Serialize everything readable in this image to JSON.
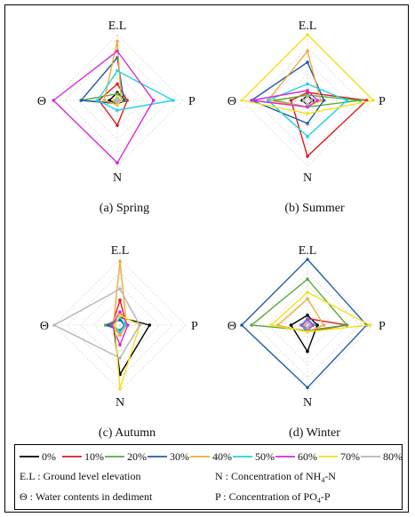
{
  "chart_data": [
    {
      "type": "radar",
      "caption": "(a) Spring",
      "axes": [
        "E.L",
        "P",
        "N",
        "Θ"
      ],
      "rlim": [
        0,
        1
      ],
      "series": [
        {
          "name": "0%",
          "color": "#000000",
          "values": [
            0.12,
            0.13,
            0.05,
            0.12
          ]
        },
        {
          "name": "10%",
          "color": "#e01a1a",
          "values": [
            0.25,
            0.15,
            0.38,
            0.28
          ]
        },
        {
          "name": "20%",
          "color": "#5aab3a",
          "values": [
            0.1,
            0.12,
            0.04,
            0.55
          ]
        },
        {
          "name": "30%",
          "color": "#1f5fa8",
          "values": [
            0.65,
            0.1,
            0.05,
            0.55
          ]
        },
        {
          "name": "40%",
          "color": "#f2a93b",
          "values": [
            0.9,
            0.06,
            0.07,
            0.2
          ]
        },
        {
          "name": "50%",
          "color": "#22d3e0",
          "values": [
            0.45,
            0.85,
            0.15,
            0.3
          ]
        },
        {
          "name": "60%",
          "color": "#d62ad6",
          "values": [
            0.75,
            0.55,
            0.95,
            0.97
          ]
        },
        {
          "name": "70%",
          "color": "#f3e21a",
          "values": [
            0.05,
            0.05,
            0.05,
            0.05
          ]
        },
        {
          "name": "80%",
          "color": "#b5b5b5",
          "values": [
            0.03,
            0.03,
            0.03,
            0.03
          ]
        }
      ]
    },
    {
      "type": "radar",
      "caption": "(b) Summer",
      "axes": [
        "E.L",
        "P",
        "N",
        "Θ"
      ],
      "rlim": [
        0,
        1
      ],
      "series": [
        {
          "name": "0%",
          "color": "#000000",
          "values": [
            0.08,
            0.08,
            0.07,
            0.08
          ]
        },
        {
          "name": "10%",
          "color": "#e01a1a",
          "values": [
            0.12,
            0.9,
            0.85,
            0.25
          ]
        },
        {
          "name": "20%",
          "color": "#5aab3a",
          "values": [
            0.08,
            0.8,
            0.1,
            0.5
          ]
        },
        {
          "name": "30%",
          "color": "#1f5fa8",
          "values": [
            0.58,
            0.25,
            0.35,
            0.85
          ]
        },
        {
          "name": "40%",
          "color": "#f2a93b",
          "values": [
            0.75,
            0.2,
            0.1,
            0.6
          ]
        },
        {
          "name": "50%",
          "color": "#22d3e0",
          "values": [
            0.25,
            0.6,
            0.55,
            0.6
          ]
        },
        {
          "name": "60%",
          "color": "#d62ad6",
          "values": [
            0.15,
            0.15,
            0.1,
            0.85
          ]
        },
        {
          "name": "70%",
          "color": "#f3e21a",
          "values": [
            1.0,
            1.0,
            0.2,
            1.0
          ]
        },
        {
          "name": "80%",
          "color": "#b5b5b5",
          "values": [
            0.06,
            0.06,
            0.06,
            0.06
          ]
        }
      ]
    },
    {
      "type": "radar",
      "caption": "(c) Autumn",
      "axes": [
        "E.L",
        "P",
        "N",
        "Θ"
      ],
      "rlim": [
        0,
        1
      ],
      "series": [
        {
          "name": "0%",
          "color": "#000000",
          "values": [
            0.12,
            0.45,
            0.75,
            0.1
          ]
        },
        {
          "name": "10%",
          "color": "#e01a1a",
          "values": [
            0.38,
            0.1,
            0.15,
            0.12
          ]
        },
        {
          "name": "20%",
          "color": "#5aab3a",
          "values": [
            0.1,
            0.1,
            0.08,
            0.22
          ]
        },
        {
          "name": "30%",
          "color": "#1f5fa8",
          "values": [
            0.08,
            0.07,
            0.08,
            0.18
          ]
        },
        {
          "name": "40%",
          "color": "#f2a93b",
          "values": [
            0.97,
            0.1,
            0.15,
            0.1
          ]
        },
        {
          "name": "50%",
          "color": "#22d3e0",
          "values": [
            0.12,
            0.08,
            0.1,
            0.1
          ]
        },
        {
          "name": "60%",
          "color": "#d62ad6",
          "values": [
            0.2,
            0.12,
            0.3,
            0.12
          ]
        },
        {
          "name": "70%",
          "color": "#f3e21a",
          "values": [
            0.15,
            0.3,
            0.97,
            0.08
          ]
        },
        {
          "name": "80%",
          "color": "#b5b5b5",
          "values": [
            0.55,
            0.3,
            0.5,
            1.0
          ]
        }
      ]
    },
    {
      "type": "radar",
      "caption": "(d) Winter",
      "axes": [
        "E.L",
        "P",
        "N",
        "Θ"
      ],
      "rlim": [
        0,
        1
      ],
      "series": [
        {
          "name": "0%",
          "color": "#000000",
          "values": [
            0.15,
            0.15,
            0.4,
            0.25
          ]
        },
        {
          "name": "10%",
          "color": "#e01a1a",
          "values": [
            0.1,
            0.6,
            0.1,
            0.1
          ]
        },
        {
          "name": "20%",
          "color": "#5aab3a",
          "values": [
            0.7,
            0.6,
            0.08,
            0.85
          ]
        },
        {
          "name": "30%",
          "color": "#1f5fa8",
          "values": [
            1.0,
            0.9,
            0.95,
            1.0
          ]
        },
        {
          "name": "40%",
          "color": "#f2a93b",
          "values": [
            0.4,
            0.25,
            0.1,
            0.45
          ]
        },
        {
          "name": "50%",
          "color": "#22d3e0",
          "values": [
            0.1,
            0.1,
            0.08,
            0.1
          ]
        },
        {
          "name": "60%",
          "color": "#d62ad6",
          "values": [
            0.08,
            0.08,
            0.06,
            0.08
          ]
        },
        {
          "name": "70%",
          "color": "#f3e21a",
          "values": [
            0.5,
            0.95,
            0.1,
            0.55
          ]
        },
        {
          "name": "80%",
          "color": "#b5b5b5",
          "values": [
            0.04,
            0.04,
            0.04,
            0.04
          ]
        }
      ]
    }
  ],
  "legend": {
    "entries": [
      "0%",
      "10%",
      "20%",
      "30%",
      "40%",
      "50%",
      "60%",
      "70%",
      "80%"
    ],
    "colors": [
      "#000000",
      "#e01a1a",
      "#5aab3a",
      "#1f5fa8",
      "#f2a93b",
      "#22d3e0",
      "#d62ad6",
      "#f3e21a",
      "#b5b5b5"
    ]
  },
  "definitions": {
    "el": "E.L : Ground level elevation",
    "n_prefix": "N : Concentration of NH",
    "n_sub": "4",
    "n_suffix": "-N",
    "theta": "Θ : Water contents in dediment",
    "p_prefix": "P : Concentration of PO",
    "p_sub": "4",
    "p_suffix": "-P"
  }
}
